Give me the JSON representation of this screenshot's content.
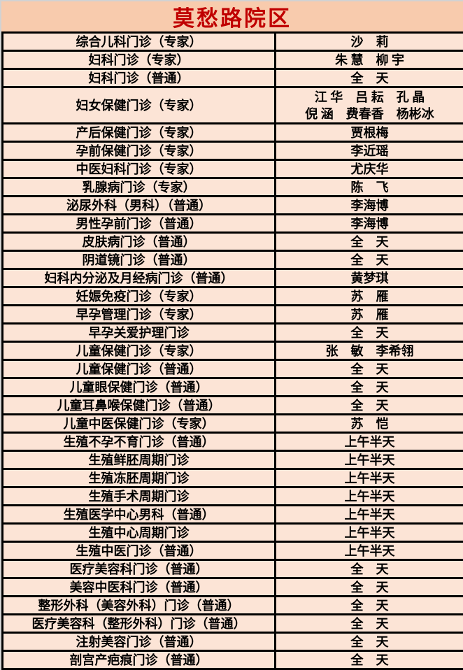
{
  "title": "莫愁路院区",
  "colors": {
    "header_bg": "#F8CBAD",
    "row_bg": "#FCE4D6",
    "border": "#000000",
    "title_text": "#C00000",
    "body_text": "#000000"
  },
  "table": {
    "rows": [
      {
        "clinic": "综合儿科门诊（专家）",
        "staff": "沙　莉"
      },
      {
        "clinic": "妇科门诊（专家）",
        "staff": "朱 慧　柳 宇"
      },
      {
        "clinic": "妇科门诊（普通）",
        "staff": "全　天"
      },
      {
        "clinic": "妇女保健门诊（专家）",
        "staff": "江 华　吕 耘　孔 晶\n倪 涵　费春香　杨彬冰",
        "tall": true
      },
      {
        "clinic": "产后保健门诊（专家）",
        "staff": "贾根梅"
      },
      {
        "clinic": "孕前保健门诊（专家）",
        "staff": "李近瑶"
      },
      {
        "clinic": "中医妇科门诊（专家）",
        "staff": "尤庆华"
      },
      {
        "clinic": "乳腺病门诊（专家）",
        "staff": "陈　飞"
      },
      {
        "clinic": "泌尿外科（男科）（普通）",
        "staff": "李海博"
      },
      {
        "clinic": "男性孕前门诊（普通）",
        "staff": "李海博"
      },
      {
        "clinic": "皮肤病门诊（普通）",
        "staff": "全　天"
      },
      {
        "clinic": "阴道镜门诊（普通）",
        "staff": "全　天"
      },
      {
        "clinic": "妇科内分泌及月经病门诊（普通）",
        "staff": "黄梦琪"
      },
      {
        "clinic": "妊娠免疫门诊（专家）",
        "staff": "苏　雁"
      },
      {
        "clinic": "早孕管理门诊（专家）",
        "staff": "苏　雁"
      },
      {
        "clinic": "早孕关爱护理门诊",
        "staff": "全　天"
      },
      {
        "clinic": "儿童保健门诊（专家）",
        "staff": "张　敏　李希翎"
      },
      {
        "clinic": "儿童保健门诊（普通）",
        "staff": "全　天"
      },
      {
        "clinic": "儿童眼保健门诊（普通）",
        "staff": "全　天"
      },
      {
        "clinic": "儿童耳鼻喉保健门诊（普通）",
        "staff": "全　天"
      },
      {
        "clinic": "儿童中医保健门诊（专家）",
        "staff": "苏　恺"
      },
      {
        "clinic": "生殖不孕不育门诊（普通）",
        "staff": "上午半天"
      },
      {
        "clinic": "生殖鲜胚周期门诊",
        "staff": "上午半天"
      },
      {
        "clinic": "生殖冻胚周期门诊",
        "staff": "上午半天"
      },
      {
        "clinic": "生殖手术周期门诊",
        "staff": "上午半天"
      },
      {
        "clinic": "生殖医学中心男科（普通）",
        "staff": "上午半天"
      },
      {
        "clinic": "生殖中心周期门诊",
        "staff": "上午半天"
      },
      {
        "clinic": "生殖中医门诊（普通）",
        "staff": "上午半天"
      },
      {
        "clinic": "医疗美容科门诊（普通）",
        "staff": "全　天"
      },
      {
        "clinic": "美容中医科门诊（普通）",
        "staff": "全　天"
      },
      {
        "clinic": "整形外科（美容外科）门诊（普通）",
        "staff": "全　天"
      },
      {
        "clinic": "医疗美容科（整形外科）门诊（普通）",
        "staff": "全　天"
      },
      {
        "clinic": "注射美容门诊（普通）",
        "staff": "全　天"
      },
      {
        "clinic": "剖宫产疤痕门诊（普通）",
        "staff": "全　天"
      }
    ]
  }
}
